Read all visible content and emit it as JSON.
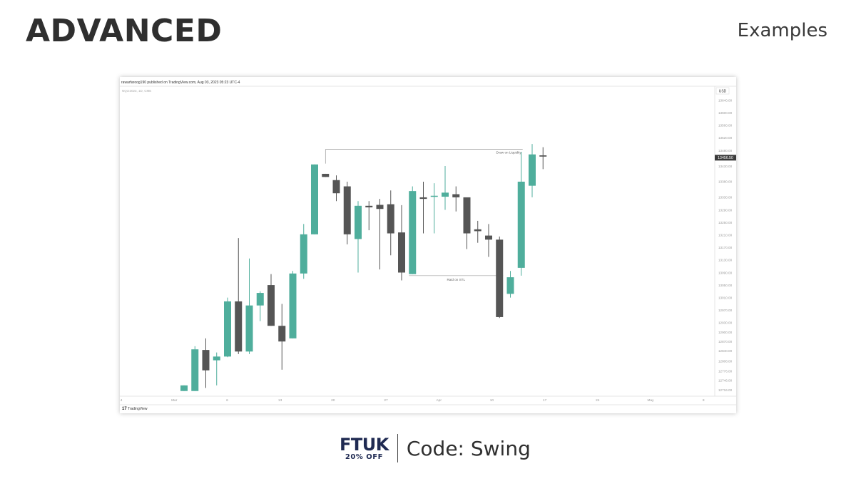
{
  "header": {
    "title": "ADVANCED",
    "subtitle": "Examples"
  },
  "chart_meta": {
    "published": "rawarfaroog190 published on TradingView.com, Aug 03, 2023 05:23 UTC-4",
    "symbol": "NQ1!2023, 1D, CME",
    "currency": "USD",
    "last_price": "13456.50",
    "watermark": "TradingView",
    "annotation_top": "Draw on Liquidity",
    "annotation_bottom": "Raid on STL"
  },
  "chart_data": {
    "type": "candlestick",
    "ylim": [
      12700,
      13655
    ],
    "y_ticks": [
      "13640.00",
      "13600.00",
      "13560.00",
      "13520.00",
      "13480.00",
      "13430.00",
      "13380.00",
      "13330.00",
      "13290.00",
      "13250.00",
      "13210.00",
      "13170.00",
      "13130.00",
      "13090.00",
      "13050.00",
      "13010.00",
      "12970.00",
      "12930.00",
      "12900.00",
      "12870.00",
      "12840.00",
      "12808.00",
      "12776.00",
      "12746.00",
      "12716.00"
    ],
    "x_ticks": [
      "4",
      "Mar",
      "6",
      "13",
      "20",
      "27",
      "Apr",
      "10",
      "17",
      "24",
      "May",
      "8"
    ],
    "candles": [
      {
        "o": 12712,
        "h": 12730,
        "l": 12712,
        "c": 12730
      },
      {
        "o": 12712,
        "h": 12855,
        "l": 12712,
        "c": 12845
      },
      {
        "o": 12843,
        "h": 12880,
        "l": 12722,
        "c": 12778
      },
      {
        "o": 12810,
        "h": 12835,
        "l": 12730,
        "c": 12822
      },
      {
        "o": 12822,
        "h": 13010,
        "l": 12820,
        "c": 12998
      },
      {
        "o": 12998,
        "h": 13200,
        "l": 12830,
        "c": 12838
      },
      {
        "o": 12838,
        "h": 13135,
        "l": 12830,
        "c": 12985
      },
      {
        "o": 12985,
        "h": 13030,
        "l": 12935,
        "c": 13025
      },
      {
        "o": 13050,
        "h": 13085,
        "l": 12920,
        "c": 12920
      },
      {
        "o": 12920,
        "h": 12990,
        "l": 12780,
        "c": 12870
      },
      {
        "o": 12880,
        "h": 13095,
        "l": 12880,
        "c": 13087
      },
      {
        "o": 13087,
        "h": 13245,
        "l": 13070,
        "c": 13212
      },
      {
        "o": 13212,
        "h": 13435,
        "l": 13212,
        "c": 13435
      },
      {
        "o": 13405,
        "h": 13405,
        "l": 13395,
        "c": 13395
      },
      {
        "o": 13385,
        "h": 13400,
        "l": 13318,
        "c": 13343
      },
      {
        "o": 13365,
        "h": 13380,
        "l": 13180,
        "c": 13212
      },
      {
        "o": 13197,
        "h": 13318,
        "l": 13090,
        "c": 13303
      },
      {
        "o": 13303,
        "h": 13318,
        "l": 13225,
        "c": 13298
      },
      {
        "o": 13306,
        "h": 13325,
        "l": 13100,
        "c": 13293
      },
      {
        "o": 13308,
        "h": 13352,
        "l": 13145,
        "c": 13215
      },
      {
        "o": 13218,
        "h": 13305,
        "l": 13065,
        "c": 13090
      },
      {
        "o": 13085,
        "h": 13365,
        "l": 13085,
        "c": 13350
      },
      {
        "o": 13330,
        "h": 13380,
        "l": 13215,
        "c": 13325
      },
      {
        "o": 13335,
        "h": 13375,
        "l": 13215,
        "c": 13335
      },
      {
        "o": 13332,
        "h": 13430,
        "l": 13290,
        "c": 13345
      },
      {
        "o": 13340,
        "h": 13365,
        "l": 13285,
        "c": 13330
      },
      {
        "o": 13330,
        "h": 13325,
        "l": 13165,
        "c": 13215
      },
      {
        "o": 13228,
        "h": 13255,
        "l": 13185,
        "c": 13222
      },
      {
        "o": 13208,
        "h": 13245,
        "l": 13140,
        "c": 13195
      },
      {
        "o": 13195,
        "h": 13205,
        "l": 12945,
        "c": 12948
      },
      {
        "o": 13022,
        "h": 13095,
        "l": 13010,
        "c": 13075
      },
      {
        "o": 13105,
        "h": 13475,
        "l": 13080,
        "c": 13380
      },
      {
        "o": 13367,
        "h": 13500,
        "l": 13330,
        "c": 13467
      },
      {
        "o": 13464,
        "h": 13490,
        "l": 13420,
        "c": 13460
      }
    ],
    "levels": [
      {
        "label": "Draw on Liquidity",
        "price": 13483
      },
      {
        "label": "Raid on STL",
        "price": 13080
      }
    ]
  },
  "colors": {
    "bull": "#4fae9c",
    "bear": "#555555",
    "axis_text": "#999999",
    "level_line": "#888888"
  },
  "footer": {
    "brand": "FTUK",
    "discount": "20% OFF",
    "code": "Code: Swing"
  }
}
